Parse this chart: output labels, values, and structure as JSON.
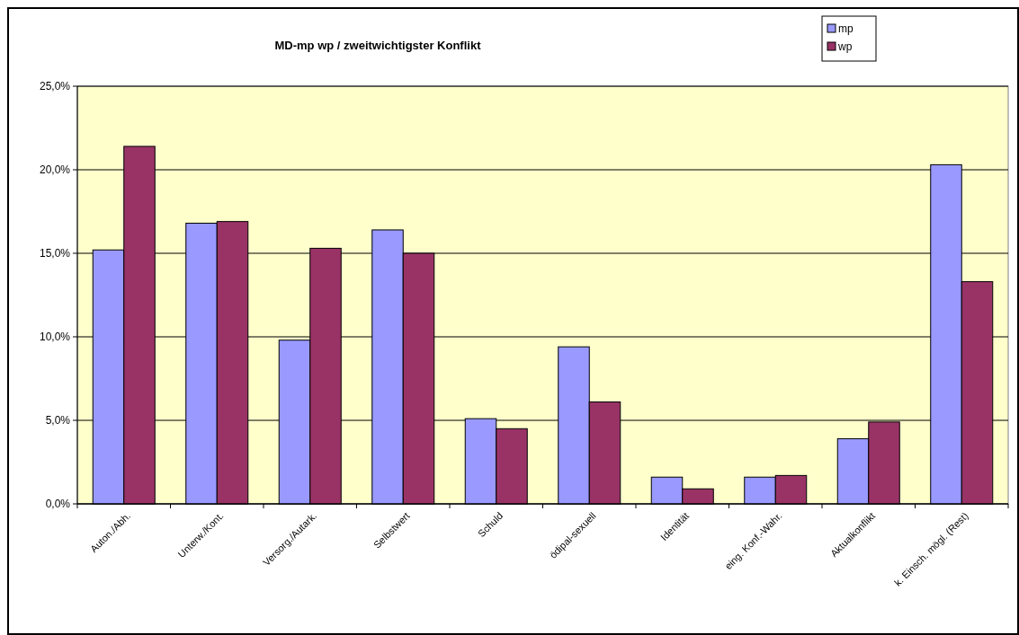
{
  "chart_data": {
    "type": "bar",
    "title": "MD-mp wp / zweitwichtigster Konflikt",
    "categories": [
      "Auton./Abh.",
      "Unterw./Kont.",
      "Versorg./Autark.",
      "Selbstwert",
      "Schuld",
      "ödipal-sexuell",
      "Identität",
      "eing. Konf.-Wahr.",
      "Aktualkonflikt",
      "k. Einsch. mögl. (Rest)"
    ],
    "series": [
      {
        "name": "mp",
        "color": "#9999ff",
        "values": [
          15.2,
          16.8,
          9.8,
          16.4,
          5.1,
          9.4,
          1.6,
          1.6,
          3.9,
          20.3
        ]
      },
      {
        "name": "wp",
        "color": "#993366",
        "values": [
          21.4,
          16.9,
          15.3,
          15.0,
          4.5,
          6.1,
          0.9,
          1.7,
          4.9,
          13.3
        ]
      }
    ],
    "ylim": [
      0,
      25
    ],
    "yticks": [
      {
        "value": 0,
        "label": "0,0%"
      },
      {
        "value": 5,
        "label": "5,0%"
      },
      {
        "value": 10,
        "label": "10,0%"
      },
      {
        "value": 15,
        "label": "15,0%"
      },
      {
        "value": 20,
        "label": "20,0%"
      },
      {
        "value": 25,
        "label": "25,0%"
      }
    ],
    "grid": "y",
    "legend": "top right"
  }
}
